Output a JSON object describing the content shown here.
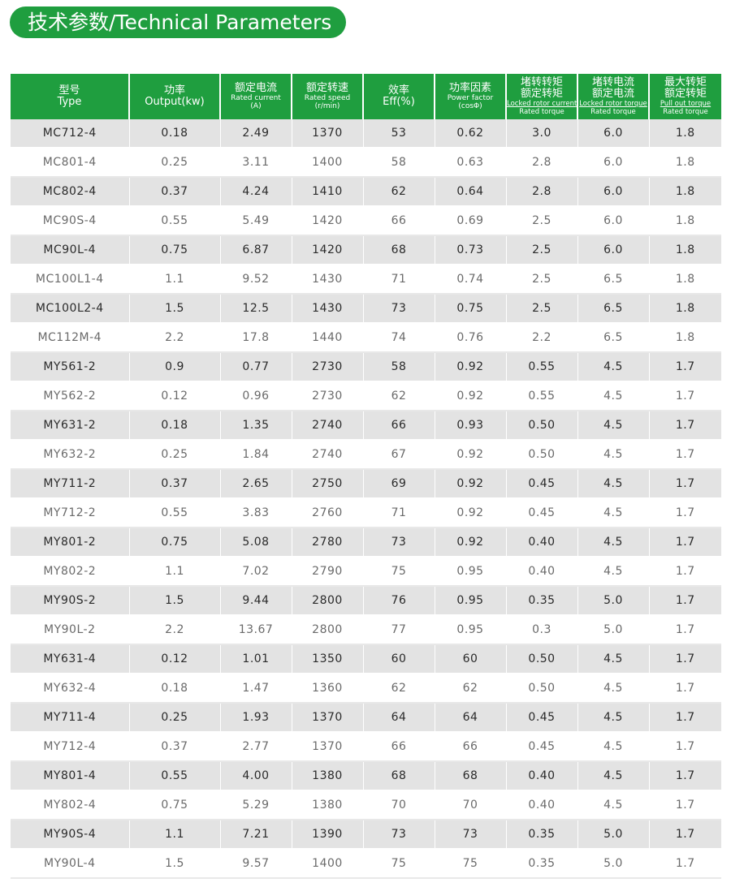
{
  "title": "技术参数/Technical Parameters",
  "headers": [
    {
      "cn": "型号",
      "en": "Type"
    },
    {
      "cn": "功率",
      "en": "Output(kw)"
    },
    {
      "cn": "额定电流",
      "en_small": "Rated current",
      "unit": "(A)"
    },
    {
      "cn": "额定转速",
      "en_small": "Rated speed",
      "unit": "(r/min)"
    },
    {
      "cn": "效率",
      "en": "Eff(%)"
    },
    {
      "cn": "功率因素",
      "en_small": "Power factor",
      "unit": "(cosΦ)"
    },
    {
      "cn1": "堵转转矩",
      "cn2": "额定转矩",
      "sub1": "Locked rotor current",
      "sub2": "Rated torque"
    },
    {
      "cn1": "堵转电流",
      "cn2": "额定电流",
      "sub1": "Locked rotor torque",
      "sub2": "Rated torque"
    },
    {
      "cn1": "最大转矩",
      "cn2": "额定转矩",
      "sub1": "Pull out torque",
      "sub2": "Rated torque"
    }
  ],
  "rows": [
    [
      "MC712-4",
      "0.18",
      "2.49",
      "1370",
      "53",
      "0.62",
      "3.0",
      "6.0",
      "1.8"
    ],
    [
      "MC801-4",
      "0.25",
      "3.11",
      "1400",
      "58",
      "0.63",
      "2.8",
      "6.0",
      "1.8"
    ],
    [
      "MC802-4",
      "0.37",
      "4.24",
      "1410",
      "62",
      "0.64",
      "2.8",
      "6.0",
      "1.8"
    ],
    [
      "MC90S-4",
      "0.55",
      "5.49",
      "1420",
      "66",
      "0.69",
      "2.5",
      "6.0",
      "1.8"
    ],
    [
      "MC90L-4",
      "0.75",
      "6.87",
      "1420",
      "68",
      "0.73",
      "2.5",
      "6.0",
      "1.8"
    ],
    [
      "MC100L1-4",
      "1.1",
      "9.52",
      "1430",
      "71",
      "0.74",
      "2.5",
      "6.5",
      "1.8"
    ],
    [
      "MC100L2-4",
      "1.5",
      "12.5",
      "1430",
      "73",
      "0.75",
      "2.5",
      "6.5",
      "1.8"
    ],
    [
      "MC112M-4",
      "2.2",
      "17.8",
      "1440",
      "74",
      "0.76",
      "2.2",
      "6.5",
      "1.8"
    ],
    [
      "MY561-2",
      "0.9",
      "0.77",
      "2730",
      "58",
      "0.92",
      "0.55",
      "4.5",
      "1.7"
    ],
    [
      "MY562-2",
      "0.12",
      "0.96",
      "2730",
      "62",
      "0.92",
      "0.55",
      "4.5",
      "1.7"
    ],
    [
      "MY631-2",
      "0.18",
      "1.35",
      "2740",
      "66",
      "0.93",
      "0.50",
      "4.5",
      "1.7"
    ],
    [
      "MY632-2",
      "0.25",
      "1.84",
      "2740",
      "67",
      "0.92",
      "0.50",
      "4.5",
      "1.7"
    ],
    [
      "MY711-2",
      "0.37",
      "2.65",
      "2750",
      "69",
      "0.92",
      "0.45",
      "4.5",
      "1.7"
    ],
    [
      "MY712-2",
      "0.55",
      "3.83",
      "2760",
      "71",
      "0.92",
      "0.45",
      "4.5",
      "1.7"
    ],
    [
      "MY801-2",
      "0.75",
      "5.08",
      "2780",
      "73",
      "0.92",
      "0.40",
      "4.5",
      "1.7"
    ],
    [
      "MY802-2",
      "1.1",
      "7.02",
      "2790",
      "75",
      "0.95",
      "0.40",
      "4.5",
      "1.7"
    ],
    [
      "MY90S-2",
      "1.5",
      "9.44",
      "2800",
      "76",
      "0.95",
      "0.35",
      "5.0",
      "1.7"
    ],
    [
      "MY90L-2",
      "2.2",
      "13.67",
      "2800",
      "77",
      "0.95",
      "0.3",
      "5.0",
      "1.7"
    ],
    [
      "MY631-4",
      "0.12",
      "1.01",
      "1350",
      "60",
      "60",
      "0.50",
      "4.5",
      "1.7"
    ],
    [
      "MY632-4",
      "0.18",
      "1.47",
      "1360",
      "62",
      "62",
      "0.50",
      "4.5",
      "1.7"
    ],
    [
      "MY711-4",
      "0.25",
      "1.93",
      "1370",
      "64",
      "64",
      "0.45",
      "4.5",
      "1.7"
    ],
    [
      "MY712-4",
      "0.37",
      "2.77",
      "1370",
      "66",
      "66",
      "0.45",
      "4.5",
      "1.7"
    ],
    [
      "MY801-4",
      "0.55",
      "4.00",
      "1380",
      "68",
      "68",
      "0.40",
      "4.5",
      "1.7"
    ],
    [
      "MY802-4",
      "0.75",
      "5.29",
      "1380",
      "70",
      "70",
      "0.40",
      "4.5",
      "1.7"
    ],
    [
      "MY90S-4",
      "1.1",
      "7.21",
      "1390",
      "73",
      "73",
      "0.35",
      "5.0",
      "1.7"
    ],
    [
      "MY90L-4",
      "1.5",
      "9.57",
      "1400",
      "75",
      "75",
      "0.35",
      "5.0",
      "1.7"
    ]
  ],
  "colors": {
    "header_green": "#1f9e3f",
    "row_shade": "#e3e3e3"
  }
}
